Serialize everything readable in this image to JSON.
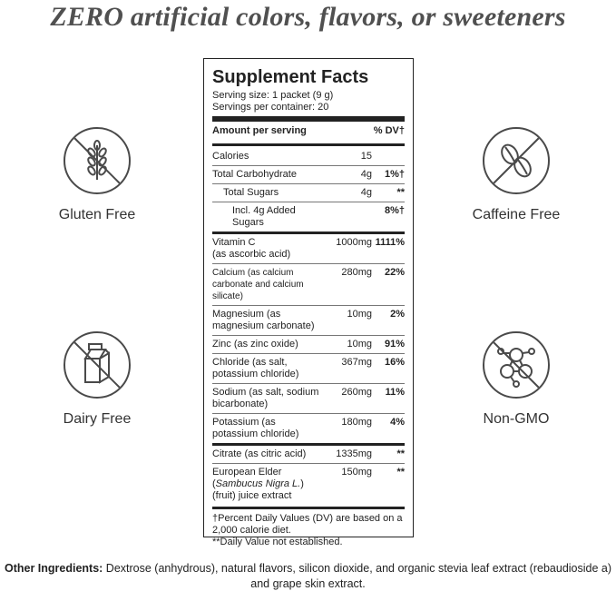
{
  "headline": "ZERO artificial colors, flavors, or sweeteners",
  "badges": {
    "gluten": {
      "label": "Gluten Free",
      "icon": "wheat-crossed-icon"
    },
    "caffeine": {
      "label": "Caffeine Free",
      "icon": "coffee-bean-crossed-icon"
    },
    "dairy": {
      "label": "Dairy Free",
      "icon": "milk-carton-crossed-icon"
    },
    "gmo": {
      "label": "Non-GMO",
      "icon": "molecule-crossed-icon"
    }
  },
  "facts": {
    "title": "Supplement Facts",
    "serving_size": "Serving size: 1 packet (9 g)",
    "servings_per_container": "Servings per container: 20",
    "header_amount": "Amount per serving",
    "header_dv": "% DV†",
    "rows": [
      {
        "name": "Calories",
        "amount": "15",
        "dv": ""
      },
      {
        "name": "Total Carbohydrate",
        "amount": "4g",
        "dv": "1%†"
      },
      {
        "name": "Total Sugars",
        "amount": "4g",
        "dv": "**"
      },
      {
        "name": "Incl. 4g Added Sugars",
        "amount": "",
        "dv": "8%†"
      },
      {
        "name": "Vitamin C\n(as ascorbic acid)",
        "amount": "1000mg",
        "dv": "1111%"
      },
      {
        "name": "Calcium (as calcium carbonate and calcium silicate)",
        "amount": "280mg",
        "dv": "22%"
      },
      {
        "name": "Magnesium (as magnesium carbonate)",
        "amount": "10mg",
        "dv": "2%"
      },
      {
        "name": "Zinc (as zinc oxide)",
        "amount": "10mg",
        "dv": "91%"
      },
      {
        "name": "Chloride (as salt, potassium chloride)",
        "amount": "367mg",
        "dv": "16%"
      },
      {
        "name": "Sodium (as salt, sodium bicarbonate)",
        "amount": "260mg",
        "dv": "11%"
      },
      {
        "name": "Potassium (as potassium chloride)",
        "amount": "180mg",
        "dv": "4%"
      },
      {
        "name": "Citrate (as citric acid)",
        "amount": "1335mg",
        "dv": "**"
      },
      {
        "name": "European Elder",
        "amount": "150mg",
        "dv": "**"
      }
    ],
    "elder_latin": "Sambucus Nigra L.",
    "elder_extract": "(fruit) juice extract",
    "footnote_dv": "†Percent Daily Values (DV) are based on a 2,000 calorie diet.",
    "footnote_na": "**Daily Value not established."
  },
  "ingredients": {
    "label": "Other Ingredients:",
    "text": " Dextrose (anhydrous), natural flavors, silicon dioxide, and organic stevia leaf extract (rebaudioside a) and grape skin extract."
  },
  "colors": {
    "icon_stroke": "#4a4a4a",
    "text": "#222222",
    "headline": "#505050"
  }
}
